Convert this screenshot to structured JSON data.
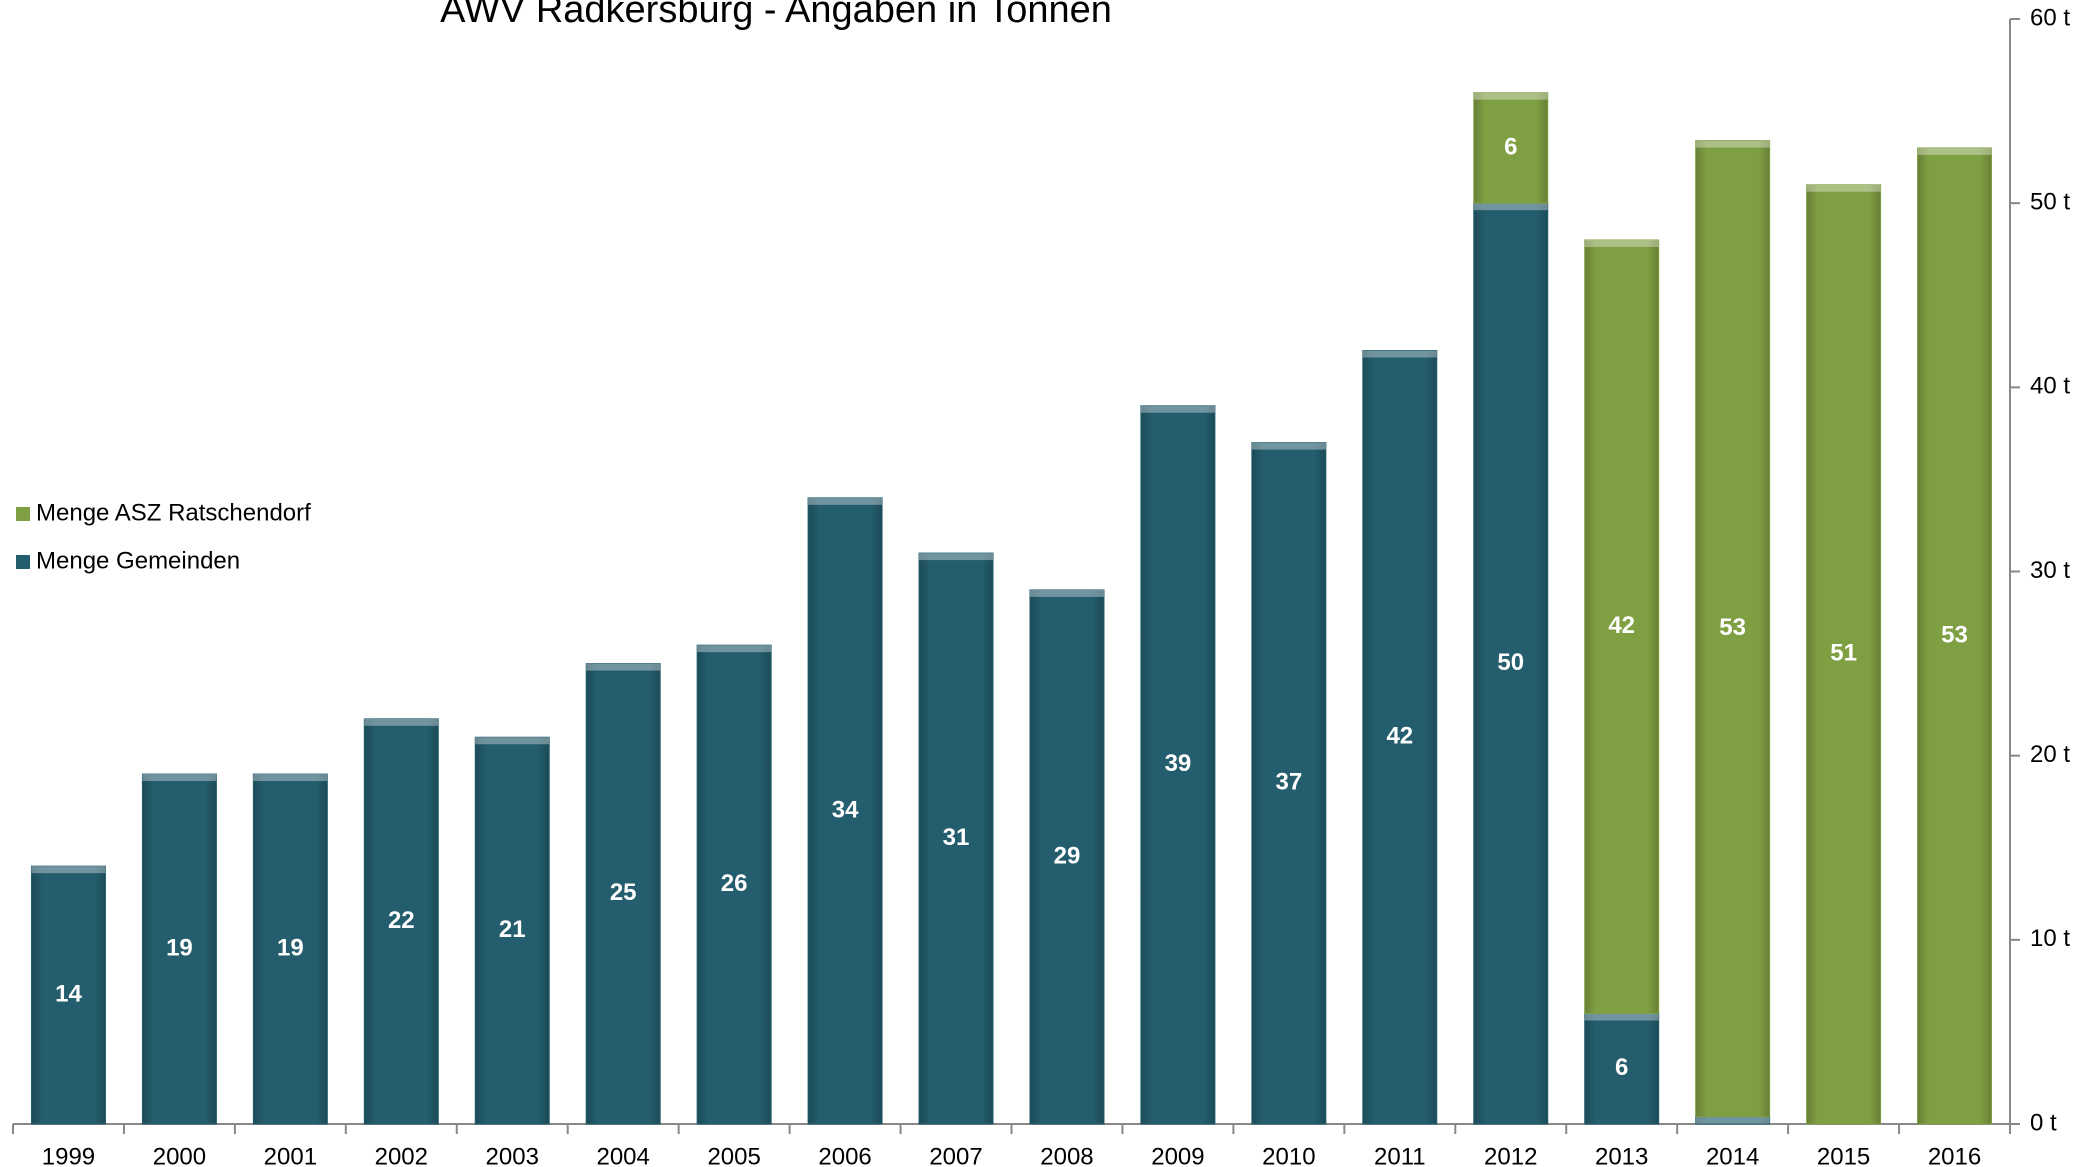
{
  "chart_data": {
    "type": "stacked_bar",
    "title": "AWV Radkersburg - Angaben in Tonnen",
    "categories": [
      "1999",
      "2000",
      "2001",
      "2002",
      "2003",
      "2004",
      "2005",
      "2006",
      "2007",
      "2008",
      "2009",
      "2010",
      "2011",
      "2012",
      "2013",
      "2014",
      "2015",
      "2016"
    ],
    "series": [
      {
        "name": "Menge Gemeinden",
        "color": "#245d6d",
        "values": [
          14,
          19,
          19,
          22,
          21,
          25,
          26,
          34,
          31,
          29,
          39,
          37,
          42,
          50,
          6,
          0.4,
          null,
          null
        ]
      },
      {
        "name": "Menge ASZ Ratschendorf",
        "color": "#7f9f43",
        "values": [
          null,
          null,
          null,
          null,
          null,
          null,
          null,
          null,
          null,
          null,
          null,
          null,
          null,
          6,
          42,
          53,
          51,
          53
        ]
      }
    ],
    "ylim": [
      0,
      60
    ],
    "yticks": [
      {
        "value": 0,
        "label": "0 t"
      },
      {
        "value": 10,
        "label": "10 t"
      },
      {
        "value": 20,
        "label": "20 t"
      },
      {
        "value": 30,
        "label": "30 t"
      },
      {
        "value": 40,
        "label": "40 t"
      },
      {
        "value": 50,
        "label": "50 t"
      },
      {
        "value": 60,
        "label": "60 t"
      }
    ],
    "y_axis_side": "right",
    "legend": "left"
  }
}
